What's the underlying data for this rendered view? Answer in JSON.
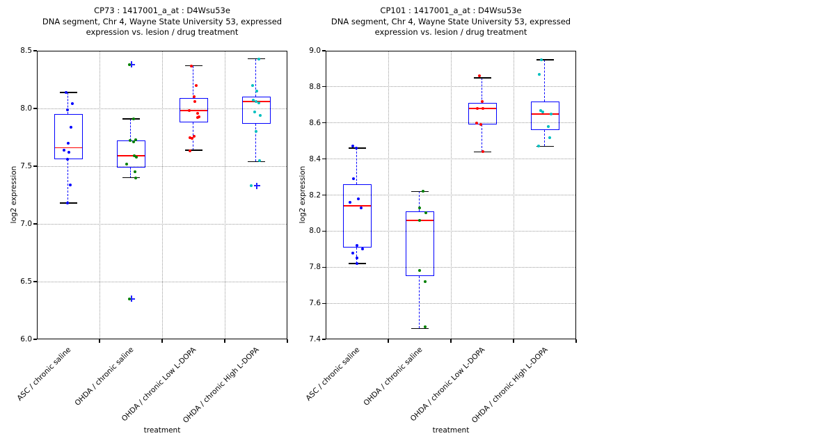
{
  "figure": {
    "background": "#ffffff"
  },
  "style": {
    "box_color": "#0000ff",
    "median_color": "#ff0000",
    "whisker_color": "#0000ff",
    "cap_color": "#000000",
    "grid_color": "#9b9b9b",
    "axis_color": "#000000",
    "flier_color": "#2222ff",
    "flier_marker": "+",
    "point_marker": "dot"
  },
  "chart_data": [
    {
      "type": "boxplot-scatter",
      "panel": "CP73",
      "title_lines": [
        "CP73 : 1417001_a_at : D4Wsu53e",
        "DNA segment, Chr 4, Wayne State University 53, expressed",
        "expression vs. lesion / drug treatment"
      ],
      "xlabel": "treatment",
      "ylabel": "log2 expression",
      "ylim": [
        6.0,
        8.5
      ],
      "ytick_labels": [
        "6.0",
        "6.5",
        "7.0",
        "7.5",
        "8.0",
        "8.5"
      ],
      "grid": "dotted",
      "categories": [
        "ASC / chronic saline",
        "OHDA / chronic saline",
        "OHDA / chronic Low L-DOPA",
        "OHDA / chronic High L-DOPA"
      ],
      "groups": [
        {
          "category": "ASC / chronic saline",
          "point_color": "#0000ff",
          "box": {
            "q1": 7.56,
            "median": 7.66,
            "q3": 7.95,
            "whisker_low": 7.18,
            "whisker_high": 8.14
          },
          "points": [
            [
              8.14,
              -3
            ],
            [
              8.04,
              6
            ],
            [
              7.99,
              -1
            ],
            [
              7.84,
              4
            ],
            [
              7.7,
              0
            ],
            [
              7.64,
              -6
            ],
            [
              7.62,
              1
            ],
            [
              7.56,
              -1
            ],
            [
              7.34,
              3
            ],
            [
              7.18,
              -1
            ]
          ],
          "fliers": []
        },
        {
          "category": "OHDA / chronic saline",
          "point_color": "#008000",
          "box": {
            "q1": 7.49,
            "median": 7.59,
            "q3": 7.72,
            "whisker_low": 7.4,
            "whisker_high": 7.91
          },
          "points": [
            [
              8.38,
              -2
            ],
            [
              7.91,
              4
            ],
            [
              7.73,
              7
            ],
            [
              7.72,
              -1
            ],
            [
              7.71,
              4
            ],
            [
              7.59,
              5
            ],
            [
              7.58,
              8
            ],
            [
              7.52,
              -6
            ],
            [
              7.45,
              6
            ],
            [
              7.4,
              7
            ],
            [
              6.35,
              -2
            ]
          ],
          "fliers": [
            [
              8.38,
              1
            ],
            [
              6.35,
              1
            ]
          ]
        },
        {
          "category": "OHDA / chronic Low L-DOPA",
          "point_color": "#ff0000",
          "box": {
            "q1": 7.88,
            "median": 7.98,
            "q3": 8.09,
            "whisker_low": 7.64,
            "whisker_high": 8.37
          },
          "points": [
            [
              8.37,
              -3
            ],
            [
              8.2,
              4
            ],
            [
              8.1,
              1
            ],
            [
              8.06,
              2
            ],
            [
              7.98,
              -6
            ],
            [
              7.96,
              6
            ],
            [
              7.93,
              8
            ],
            [
              7.92,
              6
            ],
            [
              7.76,
              1
            ],
            [
              7.75,
              -5
            ],
            [
              7.74,
              -2
            ],
            [
              7.63,
              -5
            ]
          ],
          "fliers": []
        },
        {
          "category": "OHDA / chronic High L-DOPA",
          "point_color": "#00bfbf",
          "box": {
            "q1": 7.87,
            "median": 8.06,
            "q3": 8.1,
            "whisker_low": 7.54,
            "whisker_high": 8.43
          },
          "points": [
            [
              8.43,
              4
            ],
            [
              8.2,
              -5
            ],
            [
              8.15,
              1
            ],
            [
              8.07,
              -4
            ],
            [
              8.06,
              0
            ],
            [
              8.05,
              4
            ],
            [
              7.97,
              -2
            ],
            [
              7.94,
              6
            ],
            [
              7.8,
              0
            ],
            [
              7.55,
              5
            ],
            [
              7.33,
              -7
            ]
          ],
          "fliers": [
            [
              7.33,
              1
            ]
          ]
        }
      ]
    },
    {
      "type": "boxplot-scatter",
      "panel": "CP101",
      "title_lines": [
        "CP101 : 1417001_a_at : D4Wsu53e",
        "DNA segment, Chr 4, Wayne State University 53, expressed",
        "expression vs. lesion / drug treatment"
      ],
      "xlabel": "treatment",
      "ylabel": "log2 expression",
      "ylim": [
        7.4,
        9.0
      ],
      "ytick_labels": [
        "7.4",
        "7.6",
        "7.8",
        "8.0",
        "8.2",
        "8.4",
        "8.6",
        "8.8",
        "9.0"
      ],
      "grid": "dotted",
      "categories": [
        "ASC / chronic saline",
        "OHDA / chronic saline",
        "OHDA / chronic Low L-DOPA",
        "OHDA / chronic High L-DOPA"
      ],
      "groups": [
        {
          "category": "ASC / chronic saline",
          "point_color": "#0000ff",
          "box": {
            "q1": 7.91,
            "median": 8.14,
            "q3": 8.26,
            "whisker_low": 7.82,
            "whisker_high": 8.46
          },
          "points": [
            [
              8.47,
              -6
            ],
            [
              8.46,
              -1
            ],
            [
              8.29,
              -5
            ],
            [
              8.18,
              2
            ],
            [
              8.16,
              -10
            ],
            [
              8.13,
              6
            ],
            [
              7.92,
              0
            ],
            [
              7.9,
              8
            ],
            [
              7.88,
              -6
            ],
            [
              7.85,
              0
            ],
            [
              7.82,
              0
            ]
          ],
          "fliers": []
        },
        {
          "category": "OHDA / chronic saline",
          "point_color": "#008000",
          "box": {
            "q1": 7.75,
            "median": 8.06,
            "q3": 8.11,
            "whisker_low": 7.46,
            "whisker_high": 8.22
          },
          "points": [
            [
              8.22,
              5
            ],
            [
              8.13,
              0
            ],
            [
              8.1,
              9
            ],
            [
              8.06,
              0
            ],
            [
              7.78,
              0
            ],
            [
              7.72,
              8
            ],
            [
              7.47,
              8
            ]
          ],
          "fliers": []
        },
        {
          "category": "OHDA / chronic Low L-DOPA",
          "point_color": "#ff0000",
          "box": {
            "q1": 8.59,
            "median": 8.68,
            "q3": 8.71,
            "whisker_low": 8.44,
            "whisker_high": 8.85
          },
          "points": [
            [
              8.86,
              -4
            ],
            [
              8.72,
              0
            ],
            [
              8.68,
              -7
            ],
            [
              8.68,
              1
            ],
            [
              8.6,
              -8
            ],
            [
              8.59,
              -2
            ],
            [
              8.44,
              1
            ]
          ],
          "fliers": []
        },
        {
          "category": "OHDA / chronic High L-DOPA",
          "point_color": "#00bfbf",
          "box": {
            "q1": 8.56,
            "median": 8.65,
            "q3": 8.72,
            "whisker_low": 8.47,
            "whisker_high": 8.95
          },
          "points": [
            [
              8.95,
              -5
            ],
            [
              8.87,
              -8
            ],
            [
              8.67,
              -6
            ],
            [
              8.66,
              -3
            ],
            [
              8.65,
              9
            ],
            [
              8.58,
              5
            ],
            [
              8.52,
              7
            ],
            [
              8.47,
              -9
            ]
          ],
          "fliers": []
        }
      ]
    }
  ]
}
